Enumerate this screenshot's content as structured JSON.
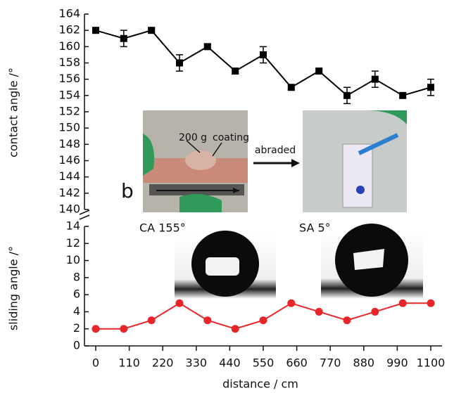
{
  "chart_data": [
    {
      "type": "line",
      "ylabel": "contact angle /°",
      "x": [
        0,
        92,
        183,
        275,
        367,
        458,
        550,
        642,
        733,
        825,
        917,
        1008,
        1100
      ],
      "series": [
        {
          "name": "contact angle",
          "color": "#000000",
          "marker": "square",
          "values": [
            162,
            161,
            162,
            158,
            160,
            157,
            159,
            155,
            157,
            154,
            156,
            154,
            155
          ],
          "errors": [
            0.3,
            1,
            0.3,
            1,
            0.3,
            0.3,
            1,
            0.3,
            0.3,
            1,
            1,
            0.3,
            1
          ]
        }
      ],
      "ylim": [
        140,
        164
      ],
      "yticks": [
        140,
        142,
        144,
        146,
        148,
        150,
        152,
        154,
        156,
        158,
        160,
        162,
        164
      ],
      "annotations": [
        "b",
        "200 g",
        "coating",
        "abraded",
        "CA 155°",
        "SA 5°"
      ]
    },
    {
      "type": "line",
      "ylabel": "sliding angle /°",
      "xlabel": "distance / cm",
      "x": [
        0,
        92,
        183,
        275,
        367,
        458,
        550,
        642,
        733,
        825,
        917,
        1008,
        1100
      ],
      "series": [
        {
          "name": "sliding angle",
          "color": "#e8262a",
          "marker": "circle",
          "values": [
            2,
            2,
            3,
            5,
            3,
            2,
            3,
            5,
            4,
            3,
            4,
            5,
            5
          ]
        }
      ],
      "ylim": [
        0,
        14
      ],
      "yticks": [
        0,
        2,
        4,
        6,
        8,
        10,
        12,
        14
      ],
      "xlim": [
        0,
        1100
      ],
      "xticks": [
        0,
        110,
        220,
        330,
        440,
        550,
        660,
        770,
        880,
        990,
        1100
      ]
    }
  ]
}
